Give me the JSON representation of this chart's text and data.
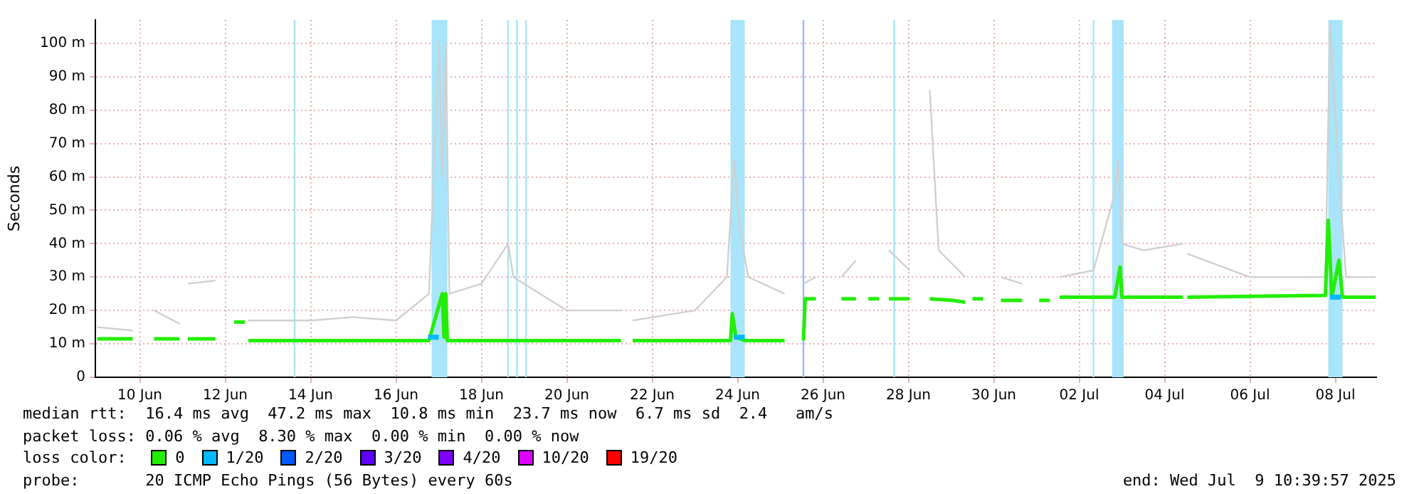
{
  "chart_data": {
    "type": "line",
    "ylabel": "Seconds",
    "legend_title": "loss color:",
    "legend": "bottom",
    "grid": true,
    "marker": "none",
    "line_style": "solid",
    "xlim": [
      "2025-06-09T11:00",
      "2025-07-09T11:00"
    ],
    "xticks": [
      {
        "value": "2025-06-10T12:00",
        "label": "10 Jun"
      },
      {
        "value": "2025-06-12T12:00",
        "label": "12 Jun"
      },
      {
        "value": "2025-06-14T12:00",
        "label": "14 Jun"
      },
      {
        "value": "2025-06-16T12:00",
        "label": "16 Jun"
      },
      {
        "value": "2025-06-18T12:00",
        "label": "18 Jun"
      },
      {
        "value": "2025-06-20T12:00",
        "label": "20 Jun"
      },
      {
        "value": "2025-06-22T12:00",
        "label": "22 Jun"
      },
      {
        "value": "2025-06-24T12:00",
        "label": "24 Jun"
      },
      {
        "value": "2025-06-26T12:00",
        "label": "26 Jun"
      },
      {
        "value": "2025-06-28T12:00",
        "label": "28 Jun"
      },
      {
        "value": "2025-06-30T12:00",
        "label": "30 Jun"
      },
      {
        "value": "2025-07-02T12:00",
        "label": "02 Jul"
      },
      {
        "value": "2025-07-04T12:00",
        "label": "04 Jul"
      },
      {
        "value": "2025-07-06T12:00",
        "label": "06 Jul"
      },
      {
        "value": "2025-07-08T12:00",
        "label": "08 Jul"
      }
    ],
    "ylim": [
      0,
      107
    ],
    "yticks": [
      0,
      {
        "value": 10,
        "label": "10 m"
      },
      {
        "value": 20,
        "label": "20 m"
      },
      {
        "value": 30,
        "label": "30 m"
      },
      {
        "value": 40,
        "label": "40 m"
      },
      {
        "value": 50,
        "label": "50 m"
      },
      {
        "value": 60,
        "label": "60 m"
      },
      {
        "value": 70,
        "label": "70 m"
      },
      {
        "value": 80,
        "label": "80 m"
      },
      {
        "value": 90,
        "label": "90 m"
      },
      {
        "value": 100,
        "label": "100 m"
      }
    ],
    "bands": [
      {
        "axis": "x",
        "from": "2025-06-17T08:00",
        "to": "2025-06-17T16:50",
        "color": "#a8e4fa"
      },
      {
        "axis": "x",
        "from": "2025-06-24T08:00",
        "to": "2025-06-24T16:00",
        "color": "#a8e4fa"
      },
      {
        "axis": "x",
        "from": "2025-07-03T06:30",
        "to": "2025-07-03T13:00",
        "color": "#a8e4fa"
      },
      {
        "axis": "x",
        "from": "2025-07-08T08:00",
        "to": "2025-07-08T16:00",
        "color": "#a8e4fa"
      }
    ],
    "ref_lines": [
      {
        "axis": "x",
        "value": "2025-06-14T03:00",
        "color": "#a8e4fa"
      },
      {
        "axis": "x",
        "value": "2025-06-19T03:00",
        "color": "#a8e4fa"
      },
      {
        "axis": "x",
        "value": "2025-06-19T08:00",
        "color": "#a8e4fa"
      },
      {
        "axis": "x",
        "value": "2025-06-19T13:00",
        "color": "#a8e4fa"
      },
      {
        "axis": "x",
        "value": "2025-06-26T01:00",
        "color": "#9ab8ff"
      },
      {
        "axis": "x",
        "value": "2025-06-28T04:00",
        "color": "#a8e4fa"
      },
      {
        "axis": "x",
        "value": "2025-07-02T20:00",
        "color": "#a8e4fa"
      }
    ],
    "series": [
      {
        "color": "#d0d0d0",
        "x": [
          "2025-06-09T12:00",
          "2025-06-10T08:00",
          "2025-06-10T14:00",
          "2025-06-10T20:00",
          "2025-06-11T10:20",
          "2025-06-11T13:00",
          "2025-06-11T15:00",
          "2025-06-12T06:30",
          "2025-06-12T16:00",
          "2025-06-13T01:00",
          "2025-06-14T12:00",
          "2025-06-15T12:00",
          "2025-06-16T12:00",
          "2025-06-17T06:30",
          "2025-06-17T12:00",
          "2025-06-17T14:00",
          "2025-06-17T16:00",
          "2025-06-17T18:00",
          "2025-06-18T12:00",
          "2025-06-19T03:00",
          "2025-06-19T06:00",
          "2025-06-20T12:00",
          "2025-06-21T18:30",
          "2025-06-21T21:00",
          "2025-06-22T01:00",
          "2025-06-23T12:00",
          "2025-06-24T06:00",
          "2025-06-24T10:00",
          "2025-06-24T13:00",
          "2025-06-24T18:00",
          "2025-06-25T14:24",
          "2025-06-25T20:00",
          "2025-06-26T01:00",
          "2025-06-26T08:00",
          "2025-06-26T15:00",
          "2025-06-26T22:20",
          "2025-06-27T06:30",
          "2025-06-27T16:00",
          "2025-06-28T01:00",
          "2025-06-28T12:50",
          "2025-06-28T18:00",
          "2025-06-29T00:00",
          "2025-06-29T05:00",
          "2025-06-29T20:00",
          "2025-06-30T08:00",
          "2025-06-30T16:00",
          "2025-07-01T04:00",
          "2025-07-01T14:00",
          "2025-07-02T01:00",
          "2025-07-02T20:00",
          "2025-07-03T08:00",
          "2025-07-03T10:00",
          "2025-07-03T12:00",
          "2025-07-04T00:00",
          "2025-07-04T22:20",
          "2025-07-04T23:30",
          "2025-07-05T00:45",
          "2025-07-06T12:00",
          "2025-07-07T12:00",
          "2025-07-08T06:24",
          "2025-07-08T09:00",
          "2025-07-08T14:00",
          "2025-07-08T18:00",
          "2025-07-09T10:40"
        ],
        "values": [
          15,
          14,
          null,
          20,
          16,
          null,
          28,
          29,
          null,
          17,
          17,
          18,
          17,
          25,
          100,
          60,
          100,
          25,
          28,
          40,
          30,
          20,
          20,
          null,
          17,
          20,
          30,
          65,
          45,
          30,
          25,
          null,
          28,
          30,
          null,
          30,
          35,
          null,
          38,
          32,
          null,
          86,
          38,
          30,
          null,
          30,
          28,
          null,
          30,
          32,
          55,
          65,
          40,
          38,
          40,
          null,
          37,
          30,
          30,
          30,
          106,
          60,
          30,
          30
        ]
      },
      {
        "name": "0",
        "color": "#22ee00",
        "x": [
          "2025-06-09T12:00",
          "2025-06-10T08:00",
          "2025-06-10T14:00",
          "2025-06-10T20:00",
          "2025-06-11T10:20",
          "2025-06-11T13:00",
          "2025-06-11T15:00",
          "2025-06-12T06:30",
          "2025-06-12T16:00",
          "2025-06-12T17:00",
          "2025-06-12T23:00",
          "2025-06-12T23:30",
          "2025-06-13T01:00",
          "2025-06-17T06:30",
          "2025-06-17T14:00",
          "2025-06-17T15:00",
          "2025-06-17T16:00",
          "2025-06-17T16:50",
          "2025-06-21T18:30",
          "2025-06-21T21:00",
          "2025-06-22T01:00",
          "2025-06-24T08:00",
          "2025-06-24T09:00",
          "2025-06-24T11:00",
          "2025-06-24T16:00",
          "2025-06-25T14:24",
          "2025-06-25T20:00",
          "2025-06-26T01:00",
          "2025-06-26T02:00",
          "2025-06-26T08:00",
          "2025-06-26T15:00",
          "2025-06-26T22:20",
          "2025-06-27T06:30",
          "2025-06-27T12:00",
          "2025-06-27T13:30",
          "2025-06-27T19:30",
          "2025-06-27T21:00",
          "2025-06-28T01:00",
          "2025-06-28T12:50",
          "2025-06-28T18:00",
          "2025-06-29T00:00",
          "2025-06-29T12:50",
          "2025-06-29T20:00",
          "2025-06-29T23:00",
          "2025-06-30T00:00",
          "2025-06-30T06:00",
          "2025-06-30T09:00",
          "2025-06-30T16:00",
          "2025-07-01T04:00",
          "2025-07-01T12:00",
          "2025-07-01T13:30",
          "2025-07-01T19:30",
          "2025-07-01T21:00",
          "2025-07-02T01:00",
          "2025-07-03T08:00",
          "2025-07-03T09:00",
          "2025-07-03T11:00",
          "2025-07-03T12:00",
          "2025-07-03T13:00",
          "2025-07-04T22:20",
          "2025-07-04T23:30",
          "2025-07-05T00:45",
          "2025-07-08T06:24",
          "2025-07-08T08:00",
          "2025-07-08T10:00",
          "2025-07-08T14:00",
          "2025-07-08T16:00",
          "2025-07-09T10:40"
        ],
        "values": [
          11.5,
          11.5,
          null,
          11.5,
          11.5,
          null,
          11.5,
          11.5,
          null,
          16.5,
          16.5,
          null,
          11,
          11,
          25,
          12,
          25,
          11,
          11,
          null,
          11,
          11,
          19,
          12,
          11,
          11,
          null,
          11,
          23.5,
          23.5,
          null,
          23.5,
          23.5,
          null,
          23.5,
          23.5,
          null,
          23.5,
          23.5,
          null,
          23.5,
          23,
          22.5,
          null,
          23.5,
          23.5,
          null,
          23,
          23,
          null,
          23,
          23,
          null,
          24,
          24,
          27,
          33,
          24,
          24,
          24,
          null,
          24,
          24.5,
          47,
          24,
          35,
          24,
          24
        ]
      },
      {
        "name": "1/20",
        "color": "#00b8ff",
        "x": [
          "2025-06-17T06:00",
          "2025-06-17T12:00",
          "2025-06-17T12:30",
          "2025-06-24T10:00",
          "2025-06-24T16:00",
          "2025-06-24T16:30",
          "2025-07-08T09:00",
          "2025-07-08T15:00"
        ],
        "values": [
          12,
          12,
          null,
          12,
          12,
          null,
          24,
          24
        ]
      },
      {
        "name": "2/20",
        "color": "#0059ff"
      },
      {
        "name": "3/20",
        "color": "#5e00ff"
      },
      {
        "name": "4/20",
        "color": "#7e00ff"
      },
      {
        "name": "10/20",
        "color": "#dd00ff"
      },
      {
        "name": "19/20",
        "color": "#ff0000"
      }
    ],
    "annotations": [
      "median rtt:  16.4 ms avg  47.2 ms max  10.8 ms min  23.7 ms now  6.7 ms sd  2.4   am/s",
      "packet loss: 0.06 % avg  8.30 % max  0.00 % min  0.00 % now",
      "probe:       20 ICMP Echo Pings (56 Bytes) every 60s",
      "end: Wed Jul  9 10:39:57 2025"
    ]
  }
}
